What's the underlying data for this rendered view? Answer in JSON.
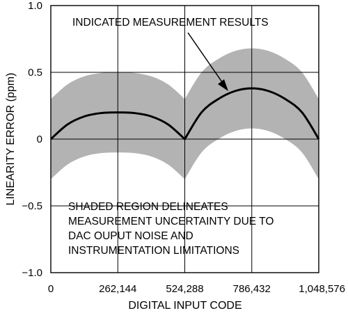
{
  "chart_data": {
    "type": "line",
    "title": "",
    "xlabel": "DIGITAL INPUT CODE",
    "ylabel": "LINEARITY ERROR (ppm)",
    "xlim": [
      0,
      1048576
    ],
    "ylim": [
      -1.0,
      1.0
    ],
    "x_ticks": [
      0,
      262144,
      524288,
      786432,
      1048576
    ],
    "x_tick_labels": [
      "0",
      "262,144",
      "524,288",
      "786,432",
      "1,048,576"
    ],
    "y_ticks": [
      -1.0,
      -0.5,
      0,
      0.5,
      1.0
    ],
    "y_tick_labels": [
      "−1.0",
      "−0.5",
      "0",
      "0.5",
      "1.0"
    ],
    "grid": true,
    "series": [
      {
        "x": [
          0,
          65536,
          131072,
          196608,
          262144,
          327680,
          393216,
          458752,
          524288,
          589824,
          655360,
          720896,
          786432,
          851968,
          917504,
          983040,
          1048576
        ],
        "y": [
          0,
          0.11,
          0.17,
          0.195,
          0.2,
          0.195,
          0.17,
          0.11,
          0,
          0.2,
          0.3,
          0.36,
          0.38,
          0.36,
          0.3,
          0.2,
          0
        ]
      }
    ],
    "uncertainty_band": {
      "x": [
        0,
        65536,
        131072,
        196608,
        262144,
        327680,
        393216,
        458752,
        524288,
        589824,
        655360,
        720896,
        786432,
        851968,
        917504,
        983040,
        1048576
      ],
      "upper": [
        0.3,
        0.41,
        0.47,
        0.495,
        0.5,
        0.495,
        0.47,
        0.41,
        0.3,
        0.5,
        0.6,
        0.66,
        0.68,
        0.66,
        0.6,
        0.5,
        0.3
      ],
      "lower": [
        -0.3,
        -0.19,
        -0.13,
        -0.105,
        -0.1,
        -0.105,
        -0.13,
        -0.19,
        -0.3,
        -0.1,
        0,
        0.06,
        0.08,
        0.06,
        0,
        -0.1,
        -0.3
      ]
    },
    "annotations": {
      "indicated": "INDICATED MEASUREMENT RESULTS",
      "shaded_lines": [
        "SHADED REGION DELINEATES",
        "MEASUREMENT UNCERTAINTY DUE TO",
        "DAC OUPUT NOISE AND",
        "INSTRUMENTATION LIMITATIONS"
      ]
    },
    "colors": {
      "band": "#b3b3b3",
      "line": "#000000",
      "grid": "#000000"
    }
  }
}
